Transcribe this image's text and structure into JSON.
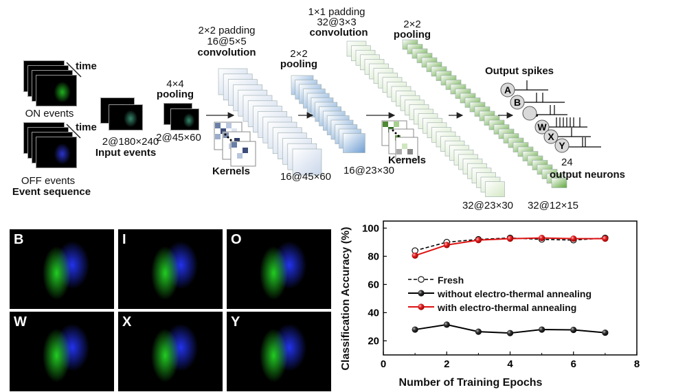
{
  "diagram": {
    "on_events": "ON events",
    "off_events": "OFF events",
    "event_sequence": "Event sequence",
    "time": "time",
    "input_size": "2@180×240",
    "input_events": "Input events",
    "pool1_size": "4×4",
    "pool1_label": "pooling",
    "pool1_out": "2@45×60",
    "conv1_padding": "2×2 padding",
    "conv1_kernel": "16@5×5",
    "conv1_label": "convolution",
    "kernels1": "Kernels",
    "conv1_out": "16@45×60",
    "pool2_size": "2×2",
    "pool2_label": "pooling",
    "pool2_out": "16@23×30",
    "conv2_padding": "1×1 padding",
    "conv2_kernel": "32@3×3",
    "conv2_label": "convolution",
    "kernels2": "Kernels",
    "conv2_out": "32@23×30",
    "pool3_size": "2×2",
    "pool3_label": "pooling",
    "pool3_out": "32@12×15",
    "output_spikes": "Output spikes",
    "neurons": [
      "A",
      "B",
      "W",
      "X",
      "Y"
    ],
    "output_count": "24",
    "output_neurons": "output neurons"
  },
  "gesture_images": [
    {
      "letter": "B"
    },
    {
      "letter": "I"
    },
    {
      "letter": "O"
    },
    {
      "letter": "W"
    },
    {
      "letter": "X"
    },
    {
      "letter": "Y"
    }
  ],
  "colors": {
    "on": "#22cc22",
    "off": "#2233ee",
    "fresh": "#000000",
    "without": "#000000",
    "with": "#dd1111"
  },
  "chart_data": {
    "type": "line",
    "xlabel": "Number of Training Epochs",
    "ylabel": "Classification Accuracy (%)",
    "xlim": [
      0,
      8
    ],
    "ylim": [
      10,
      105
    ],
    "xticks": [
      0,
      2,
      4,
      6,
      8
    ],
    "yticks": [
      20,
      40,
      60,
      80,
      100
    ],
    "x": [
      1,
      2,
      3,
      4,
      5,
      6,
      7
    ],
    "legend_position": "center-left",
    "series": [
      {
        "name": "Fresh",
        "values": [
          84,
          90,
          92,
          93,
          92,
          91.5,
          93
        ],
        "style": "dashed",
        "marker": "open-circle",
        "color": "#000000"
      },
      {
        "name": "without electro-thermal annealing",
        "values": [
          28,
          31.5,
          26.5,
          25.5,
          28,
          27.8,
          25.8
        ],
        "style": "solid",
        "marker": "black-sphere",
        "color": "#000000"
      },
      {
        "name": "with electro-thermal annealing",
        "values": [
          80.5,
          88,
          91.5,
          92.5,
          93,
          92.5,
          92.5
        ],
        "style": "solid",
        "marker": "red-sphere",
        "color": "#dd1111"
      }
    ]
  }
}
